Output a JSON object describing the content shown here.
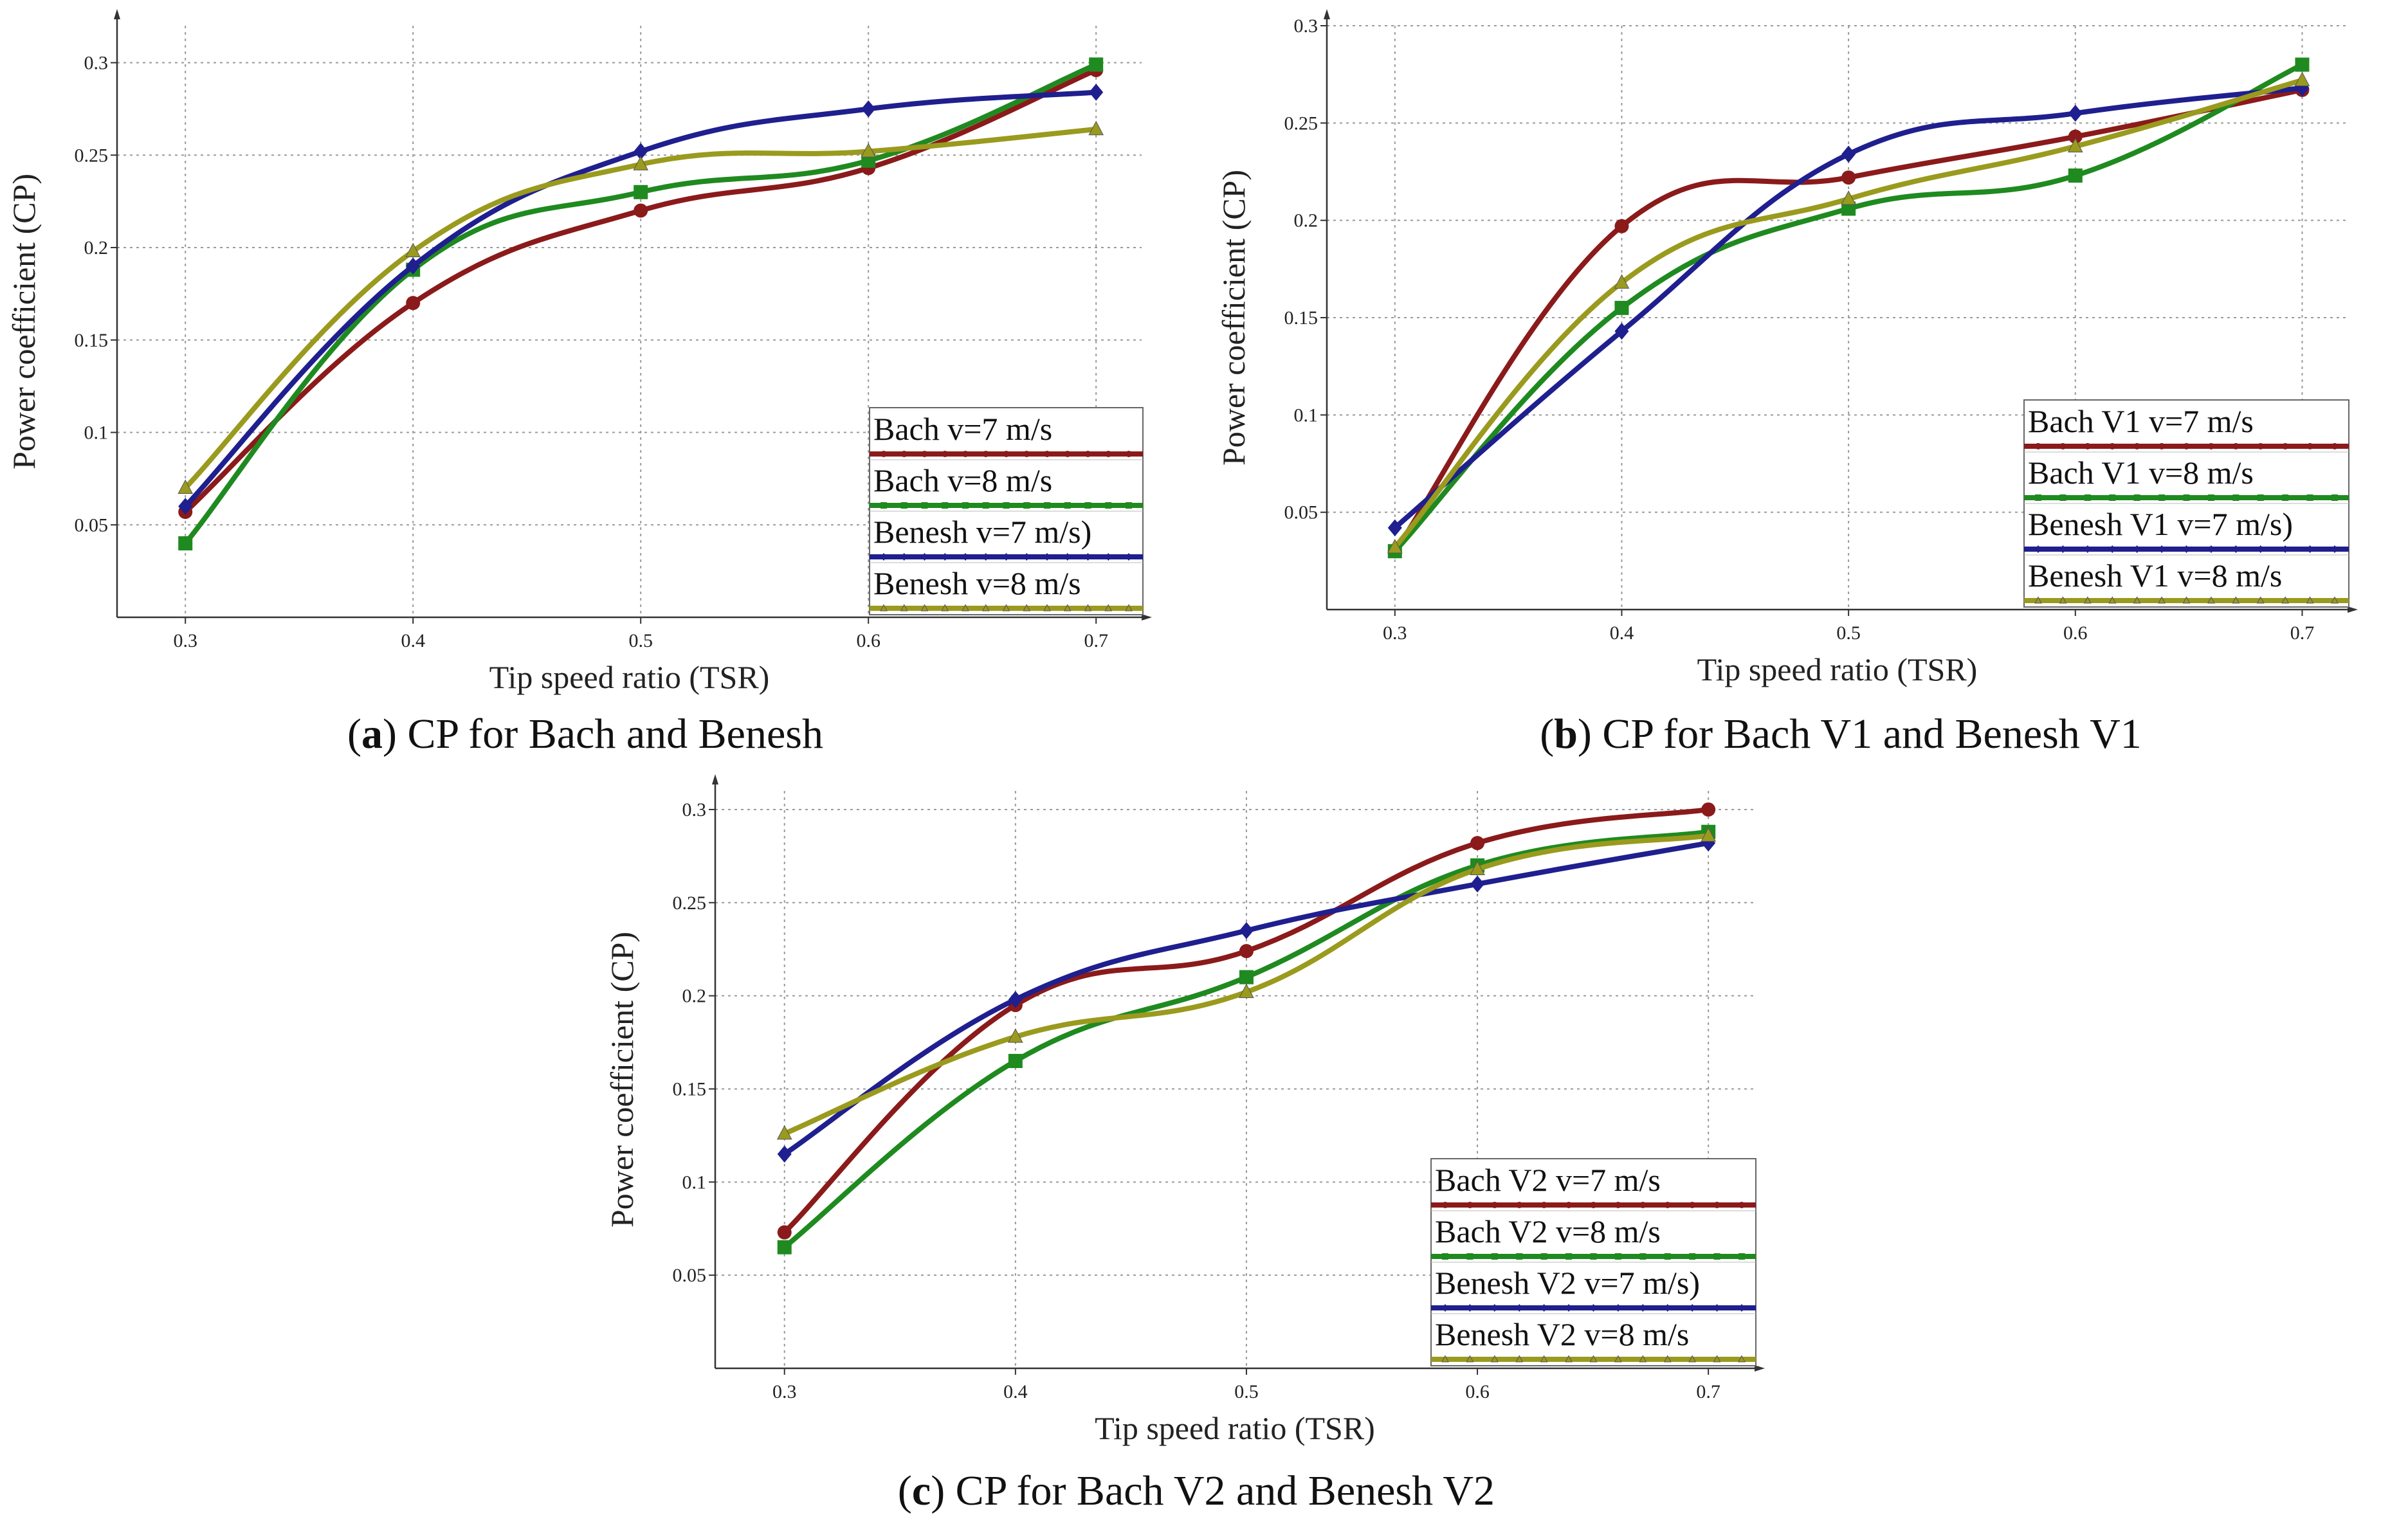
{
  "figure": {
    "colors": {
      "bach_7": "#8b1a1a",
      "bach_8": "#1f8a1f",
      "benesh_7": "#1f1f8f",
      "benesh_8": "#9a9a1e",
      "grid": "#9a9a9a",
      "axis": "#333333"
    }
  },
  "chart_data": [
    {
      "panel": "a",
      "type": "line",
      "caption_letter": "a",
      "caption_text": ") CP for Bach and Benesh",
      "caption_open": "(",
      "xlabel": "Tip speed ratio (TSR)",
      "ylabel": "Power coefficient (CP)",
      "x": [
        0.3,
        0.4,
        0.5,
        0.6,
        0.7
      ],
      "xlim": [
        0.27,
        0.72
      ],
      "ylim": [
        0.0,
        0.32
      ],
      "xticks": [
        "0.3",
        "0.4",
        "0.5",
        "0.6",
        "0.7"
      ],
      "yticks": [
        "0.05",
        "0.1",
        "0.15",
        "0.2",
        "0.25",
        "0.3"
      ],
      "grid": true,
      "legend_position": "bottom-right",
      "series": [
        {
          "name": "Bach v=7 m/s",
          "color_key": "bach_7",
          "marker": "circle",
          "values": [
            0.057,
            0.17,
            0.22,
            0.243,
            0.296
          ]
        },
        {
          "name": "Bach v=8 m/s",
          "color_key": "bach_8",
          "marker": "square",
          "values": [
            0.04,
            0.188,
            0.23,
            0.247,
            0.299
          ]
        },
        {
          "name": "Benesh v=7 m/s)",
          "color_key": "benesh_7",
          "marker": "diamond",
          "values": [
            0.06,
            0.19,
            0.252,
            0.275,
            0.284
          ]
        },
        {
          "name": "Benesh v=8 m/s",
          "color_key": "benesh_8",
          "marker": "triangle",
          "values": [
            0.07,
            0.198,
            0.245,
            0.252,
            0.264
          ]
        }
      ]
    },
    {
      "panel": "b",
      "type": "line",
      "caption_letter": "b",
      "caption_text": ") CP for Bach V1 and Benesh V1",
      "caption_open": "(",
      "xlabel": "Tip speed ratio (TSR)",
      "ylabel": "Power coefficient (CP)",
      "x": [
        0.3,
        0.4,
        0.5,
        0.6,
        0.7
      ],
      "xlim": [
        0.27,
        0.72
      ],
      "ylim": [
        0.0,
        0.3
      ],
      "xticks": [
        "0.3",
        "0.4",
        "0.5",
        "0.6",
        "0.7"
      ],
      "yticks": [
        "0.05",
        "0.1",
        "0.15",
        "0.2",
        "0.25",
        "0.3"
      ],
      "grid": true,
      "legend_position": "bottom-right",
      "series": [
        {
          "name": "Bach V1 v=7 m/s",
          "color_key": "bach_7",
          "marker": "circle",
          "values": [
            0.03,
            0.197,
            0.222,
            0.243,
            0.267
          ]
        },
        {
          "name": "Bach V1 v=8 m/s",
          "color_key": "bach_8",
          "marker": "square",
          "values": [
            0.03,
            0.155,
            0.206,
            0.223,
            0.28
          ]
        },
        {
          "name": "Benesh V1 v=7 m/s)",
          "color_key": "benesh_7",
          "marker": "diamond",
          "values": [
            0.042,
            0.143,
            0.234,
            0.255,
            0.268
          ]
        },
        {
          "name": "Benesh V1 v=8 m/s",
          "color_key": "benesh_8",
          "marker": "triangle",
          "values": [
            0.032,
            0.168,
            0.211,
            0.238,
            0.272
          ]
        }
      ]
    },
    {
      "panel": "c",
      "type": "line",
      "caption_letter": "c",
      "caption_text": ") CP for Bach V2 and Benesh V2",
      "caption_open": "(",
      "xlabel": "Tip speed ratio (TSR)",
      "ylabel": "Power coefficient (CP)",
      "x": [
        0.3,
        0.4,
        0.5,
        0.6,
        0.7
      ],
      "xlim": [
        0.27,
        0.72
      ],
      "ylim": [
        0.0,
        0.31
      ],
      "xticks": [
        "0.3",
        "0.4",
        "0.5",
        "0.6",
        "0.7"
      ],
      "yticks": [
        "0.05",
        "0.1",
        "0.15",
        "0.2",
        "0.25",
        "0.3"
      ],
      "grid": true,
      "legend_position": "bottom-right",
      "series": [
        {
          "name": "Bach V2 v=7 m/s",
          "color_key": "bach_7",
          "marker": "circle",
          "values": [
            0.073,
            0.195,
            0.224,
            0.282,
            0.3
          ]
        },
        {
          "name": "Bach V2 v=8 m/s",
          "color_key": "bach_8",
          "marker": "square",
          "values": [
            0.065,
            0.165,
            0.21,
            0.27,
            0.288
          ]
        },
        {
          "name": "Benesh V2 v=7 m/s)",
          "color_key": "benesh_7",
          "marker": "diamond",
          "values": [
            0.115,
            0.198,
            0.235,
            0.26,
            0.282
          ]
        },
        {
          "name": "Benesh V2 v=8 m/s",
          "color_key": "benesh_8",
          "marker": "triangle",
          "values": [
            0.126,
            0.178,
            0.202,
            0.268,
            0.286
          ]
        }
      ]
    }
  ]
}
